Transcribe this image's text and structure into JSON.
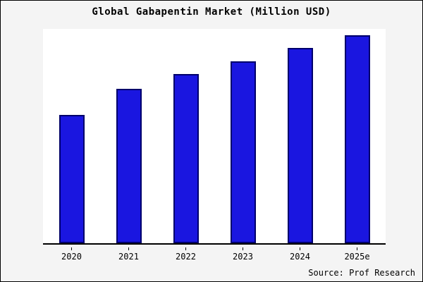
{
  "chart_data": {
    "type": "bar",
    "title": "Global Gabapentin Market (Million USD)",
    "categories": [
      "2020",
      "2021",
      "2022",
      "2023",
      "2024",
      "2025e"
    ],
    "values": [
      60,
      72,
      79,
      85,
      91,
      97
    ],
    "xlabel": "",
    "ylabel": "",
    "ylim": [
      0,
      100
    ],
    "grid": false,
    "legend": false,
    "bar_color": "#1a16e0",
    "bar_border_color": "#00006b"
  },
  "footer": {
    "source": "Source: Prof Research"
  }
}
